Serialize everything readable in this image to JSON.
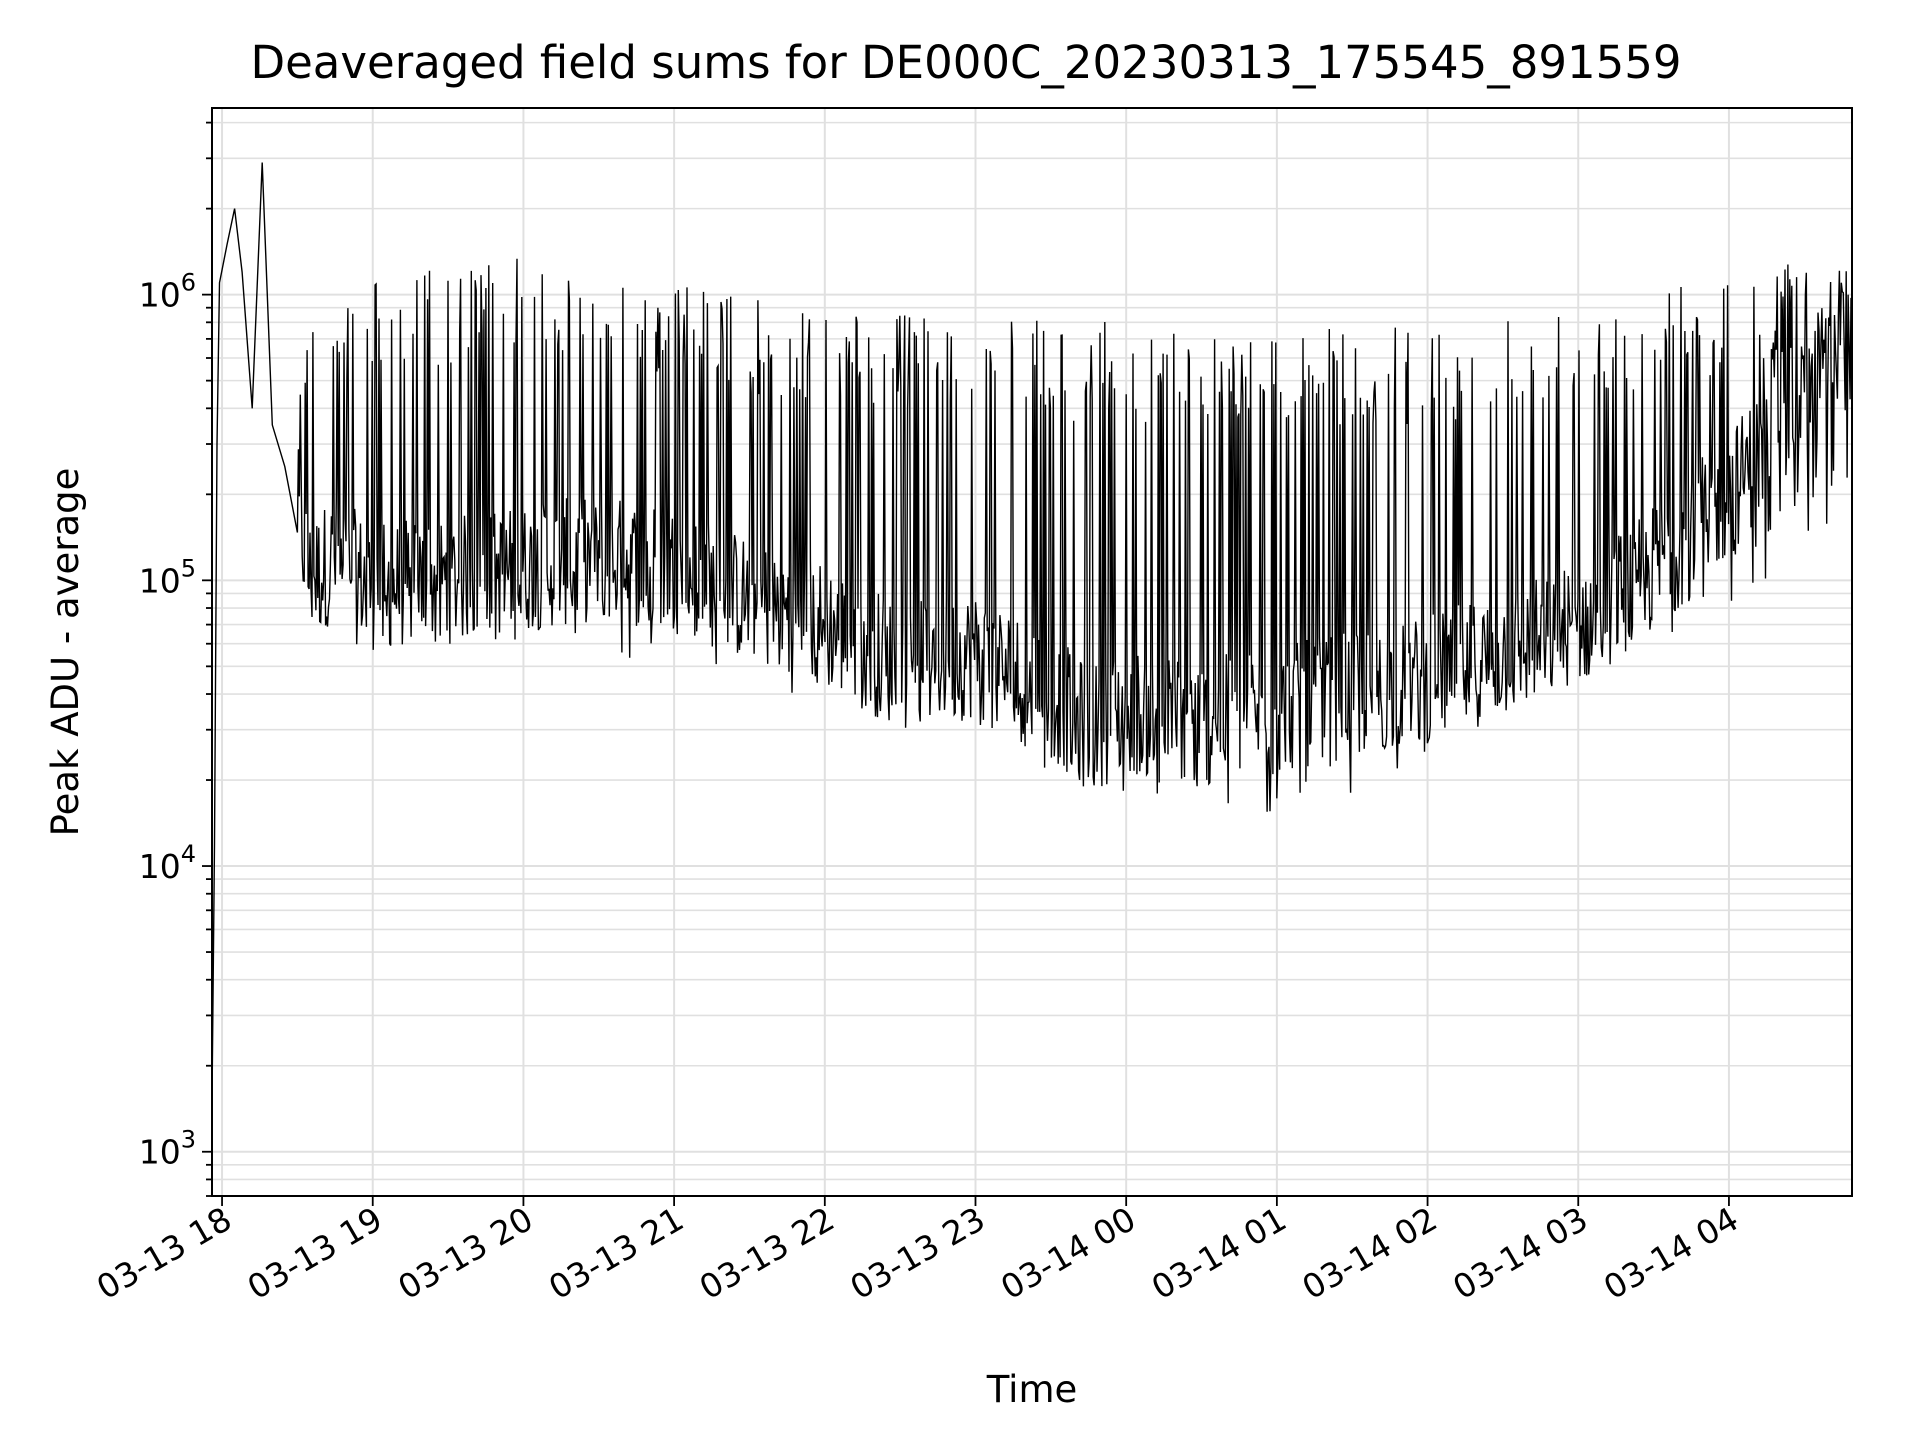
{
  "chart_data": {
    "type": "line",
    "title": "Deaveraged field sums for DE000C_20230313_175545_891559",
    "xlabel": "Time",
    "ylabel": "Peak ADU - average",
    "yscale": "log",
    "ylim": [
      700,
      4500000
    ],
    "xlim": [
      "2023-03-13 17:56",
      "2023-03-14 04:49"
    ],
    "grid": true,
    "line_color": "#000000",
    "grid_color": "#e0e0e0",
    "x_ticks": [
      {
        "t": "2023-03-13 18:00",
        "label": "03-13 18"
      },
      {
        "t": "2023-03-13 19:00",
        "label": "03-13 19"
      },
      {
        "t": "2023-03-13 20:00",
        "label": "03-13 20"
      },
      {
        "t": "2023-03-13 21:00",
        "label": "03-13 21"
      },
      {
        "t": "2023-03-13 22:00",
        "label": "03-13 22"
      },
      {
        "t": "2023-03-13 23:00",
        "label": "03-13 23"
      },
      {
        "t": "2023-03-14 00:00",
        "label": "03-14 00"
      },
      {
        "t": "2023-03-14 01:00",
        "label": "03-14 01"
      },
      {
        "t": "2023-03-14 02:00",
        "label": "03-14 02"
      },
      {
        "t": "2023-03-14 03:00",
        "label": "03-14 03"
      },
      {
        "t": "2023-03-14 04:00",
        "label": "03-14 04"
      }
    ],
    "y_ticks": [
      {
        "value": 1000,
        "base": "10",
        "exp": "3"
      },
      {
        "value": 10000,
        "base": "10",
        "exp": "4"
      },
      {
        "value": 100000,
        "base": "10",
        "exp": "5"
      },
      {
        "value": 1000000,
        "base": "10",
        "exp": "6"
      }
    ],
    "series": [
      {
        "points": [
          [
            "2023-03-13 17:56",
            1500
          ],
          [
            "2023-03-13 17:57",
            12000
          ],
          [
            "2023-03-13 17:58",
            300000
          ],
          [
            "2023-03-13 17:59",
            1100000
          ],
          [
            "2023-03-13 18:02",
            1500000
          ],
          [
            "2023-03-13 18:05",
            2000000
          ],
          [
            "2023-03-13 18:08",
            1200000
          ],
          [
            "2023-03-13 18:12",
            400000
          ],
          [
            "2023-03-13 18:16",
            2900000
          ],
          [
            "2023-03-13 18:20",
            350000
          ],
          [
            "2023-03-13 18:25",
            250000
          ],
          [
            "2023-03-13 18:30",
            180000
          ],
          [
            "2023-03-13 18:35",
            100000
          ],
          [
            "2023-03-13 18:45",
            120000
          ],
          [
            "2023-03-13 19:00",
            95000
          ],
          [
            "2023-03-13 19:30",
            100000
          ],
          [
            "2023-03-13 20:00",
            110000
          ],
          [
            "2023-03-13 20:30",
            120000
          ],
          [
            "2023-03-13 21:00",
            110000
          ],
          [
            "2023-03-13 21:30",
            85000
          ],
          [
            "2023-03-13 22:00",
            70000
          ],
          [
            "2023-03-13 22:30",
            50000
          ],
          [
            "2023-03-13 23:00",
            55000
          ],
          [
            "2023-03-13 23:30",
            40000
          ],
          [
            "2023-03-13 23:45",
            30000
          ],
          [
            "2023-03-14 00:00",
            35000
          ],
          [
            "2023-03-14 00:30",
            32000
          ],
          [
            "2023-03-14 01:00",
            35000
          ],
          [
            "2023-03-14 01:30",
            40000
          ],
          [
            "2023-03-14 02:00",
            45000
          ],
          [
            "2023-03-14 02:30",
            55000
          ],
          [
            "2023-03-14 03:00",
            70000
          ],
          [
            "2023-03-14 03:30",
            110000
          ],
          [
            "2023-03-14 04:00",
            200000
          ],
          [
            "2023-03-14 04:30",
            450000
          ],
          [
            "2023-03-14 04:49",
            700000
          ]
        ],
        "envelope": {
          "upper": [
            [
              "2023-03-13 18:30",
              900000
            ],
            [
              "2023-03-13 19:00",
              1200000
            ],
            [
              "2023-03-13 20:00",
              1350000
            ],
            [
              "2023-03-13 21:00",
              1100000
            ],
            [
              "2023-03-13 22:00",
              900000
            ],
            [
              "2023-03-13 23:00",
              820000
            ],
            [
              "2023-03-14 00:00",
              800000
            ],
            [
              "2023-03-14 01:00",
              750000
            ],
            [
              "2023-03-14 02:00",
              780000
            ],
            [
              "2023-03-14 03:00",
              950000
            ],
            [
              "2023-03-14 04:00",
              1200000
            ],
            [
              "2023-03-14 04:49",
              1400000
            ]
          ],
          "lower": [
            [
              "2023-03-13 18:30",
              80000
            ],
            [
              "2023-03-13 19:00",
              55000
            ],
            [
              "2023-03-13 20:00",
              60000
            ],
            [
              "2023-03-13 21:00",
              50000
            ],
            [
              "2023-03-13 22:00",
              38000
            ],
            [
              "2023-03-13 22:30",
              28000
            ],
            [
              "2023-03-13 23:00",
              28000
            ],
            [
              "2023-03-13 23:45",
              18000
            ],
            [
              "2023-03-14 00:00",
              17000
            ],
            [
              "2023-03-14 00:45",
              14000
            ],
            [
              "2023-03-14 01:30",
              17000
            ],
            [
              "2023-03-14 02:00",
              24000
            ],
            [
              "2023-03-14 02:30",
              32000
            ],
            [
              "2023-03-14 03:00",
              45000
            ],
            [
              "2023-03-14 03:30",
              60000
            ],
            [
              "2023-03-14 04:00",
              75000
            ],
            [
              "2023-03-14 04:30",
              120000
            ],
            [
              "2023-03-14 04:49",
              180000
            ]
          ]
        }
      }
    ]
  }
}
